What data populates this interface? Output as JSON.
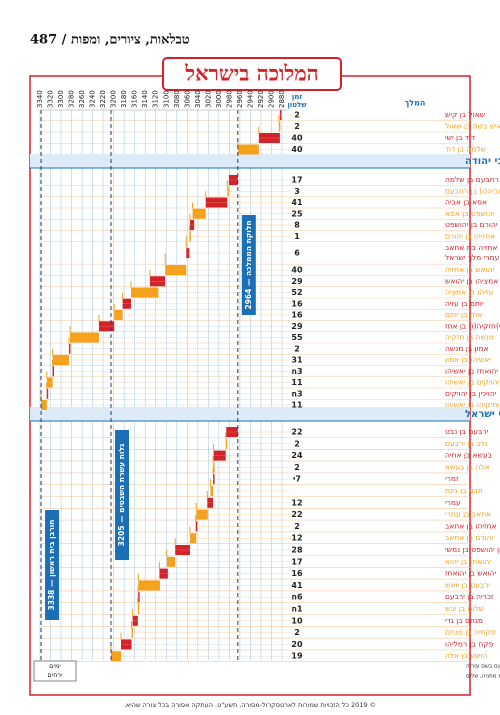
{
  "header": {
    "running_title": "טבלאות, ציורים, ומפות / 487"
  },
  "chart": {
    "title": "המלוכה בישראל",
    "reign_header": [
      "זמן",
      "שלטון"
    ],
    "king_header": "המלך",
    "xticks": [
      3340,
      3320,
      3300,
      3280,
      3260,
      3240,
      3220,
      3200,
      3180,
      3160,
      3140,
      3120,
      3100,
      3080,
      3060,
      3040,
      3020,
      3000,
      2980,
      2960,
      2940,
      2920,
      2900,
      2880
    ],
    "xlim": [
      3340,
      2880
    ],
    "united": [
      {
        "reign": "2",
        "name": "שאול בן קיש",
        "bar": [
          2882,
          2884
        ]
      },
      {
        "reign": "2",
        "name": "איש בשת בן שאול",
        "bar": [
          2884,
          2886
        ]
      },
      {
        "reign": "40",
        "name": "דוד בן ישי",
        "bar": [
          2884,
          2924
        ]
      },
      {
        "reign": "40",
        "name": "שלמה בן דוד",
        "bar": [
          2924,
          2964
        ]
      }
    ],
    "sections": [
      {
        "title": "מלכי יהודה",
        "rows": [
          {
            "reign": "17",
            "name": "רחבעם בן שלמה",
            "bar": [
              2964,
              2981
            ]
          },
          {
            "reign": "3",
            "name": "אביה(ו) בן רחבעם",
            "bar": [
              2981,
              2984
            ]
          },
          {
            "reign": "41",
            "name": "אסא בן אביה",
            "bar": [
              2984,
              3025
            ]
          },
          {
            "reign": "25",
            "name": "יהושפט בן אסא",
            "bar": [
              3025,
              3050
            ]
          },
          {
            "reign": "8",
            "name": "יהורם בן יהושפט",
            "bar": [
              3047,
              3055
            ]
          },
          {
            "reign": "1",
            "name": "אחזיהו בן יהורם",
            "bar": [
              3055,
              3056
            ]
          },
          {
            "reign": "6",
            "name": "עתליה(ו) אם אחזיה בת אחאב בן עמרי מלך ישראל",
            "bar": [
              3056,
              3062
            ]
          },
          {
            "reign": "40",
            "name": "יהואש בן אחזיה",
            "bar": [
              3062,
              3102
            ]
          },
          {
            "reign": "29",
            "name": "אמציהו בן יהואש",
            "bar": [
              3102,
              3131
            ]
          },
          {
            "reign": "52",
            "name": "עזיהו בן אמציה",
            "bar": [
              3115,
              3167
            ]
          },
          {
            "reign": "16",
            "name": "יותם בן עזיה",
            "bar": [
              3167,
              3183
            ]
          },
          {
            "reign": "16",
            "name": "אחז בן יותם",
            "bar": [
              3183,
              3199
            ]
          },
          {
            "reign": "29",
            "name": "(י)חזקיה(ו) בן אחז",
            "bar": [
              3199,
              3228
            ]
          },
          {
            "reign": "55",
            "name": "מנשה בן חזקיה",
            "bar": [
              3228,
              3283
            ]
          },
          {
            "reign": "2",
            "name": "אמון בן מנשה",
            "bar": [
              3283,
              3285
            ]
          },
          {
            "reign": "31",
            "name": "יאשיהו בן אמון",
            "bar": [
              3285,
              3316
            ]
          },
          {
            "reign": "3ח",
            "name": "יהואחז בן יאשיהו",
            "bar": [
              3316,
              3316.25
            ]
          },
          {
            "reign": "11",
            "name": "יהויקים בן יאשיהו",
            "bar": [
              3316,
              3327
            ]
          },
          {
            "reign": "3ח",
            "name": "יהויכין בן יהויקים",
            "bar": [
              3327,
              3327.25
            ]
          },
          {
            "reign": "11",
            "name": "צדקיהו בן יאשיהו",
            "bar": [
              3327,
              3338
            ]
          }
        ]
      },
      {
        "title": "מלכי ישראל",
        "rows": [
          {
            "reign": "22",
            "name": "ירבעם בן נבט",
            "bar": [
              2964,
              2986
            ]
          },
          {
            "reign": "2",
            "name": "נדב בן ירבעם",
            "bar": [
              2985,
              2987
            ]
          },
          {
            "reign": "24",
            "name": "בעשא בן אחיה",
            "bar": [
              2987,
              3010
            ]
          },
          {
            "reign": "2",
            "name": "אלה בן בעשא",
            "bar": [
              3010,
              3011
            ]
          },
          {
            "reign": "7י",
            "name": "זמרי",
            "bar": [
              3011,
              3011.05
            ]
          },
          {
            "reign": null,
            "name": "תבני בן גינת",
            "bar": [
              3011,
              3016
            ]
          },
          {
            "reign": "12",
            "name": "עמרי",
            "bar": [
              3011,
              3022
            ]
          },
          {
            "reign": "22",
            "name": "אחאב בן עמרי",
            "bar": [
              3021,
              3043
            ]
          },
          {
            "reign": "2",
            "name": "אחזיהו בן אחאב",
            "bar": [
              3042,
              3044
            ]
          },
          {
            "reign": "12",
            "name": "יהורם בן אחאב",
            "bar": [
              3043,
              3055
            ]
          },
          {
            "reign": "28",
            "name": "יהוא בן יהושפט בן נמשי",
            "bar": [
              3055,
              3083
            ]
          },
          {
            "reign": "17",
            "name": "יהואחז בן יהוא",
            "bar": [
              3083,
              3099
            ]
          },
          {
            "reign": "16",
            "name": "יהואש בן יהואחז",
            "bar": [
              3097,
              3113
            ]
          },
          {
            "reign": "41",
            "name": "ירבעם בן יואש",
            "bar": [
              3112,
              3153
            ]
          },
          {
            "reign": "6ח",
            "name": "זכריה בן ירבעם",
            "bar": [
              3153,
              3153.5
            ]
          },
          {
            "reign": "1ח",
            "name": "שלום בן יבש",
            "bar": [
              3154,
              3154.1
            ]
          },
          {
            "reign": "10",
            "name": "מנחם בן גדי",
            "bar": [
              3154,
              3164
            ]
          },
          {
            "reign": "2",
            "name": "פקחיה בן מנחם",
            "bar": [
              3164,
              3166
            ]
          },
          {
            "reign": "20",
            "name": "פקח בן רמליהו",
            "bar": [
              3166,
              3186
            ]
          },
          {
            "reign": "19",
            "name": "הושע בן אלה",
            "bar": [
              3186,
              3205
            ]
          }
        ]
      }
    ],
    "events": [
      {
        "year": 2964,
        "label": "חלוקת הממלכה — 2964"
      },
      {
        "year": 3205,
        "label": "גלות עשרת השבטים — 3205"
      },
      {
        "year": 3338,
        "label": "חורבן בית ראשון — 3338"
      }
    ],
    "legend": [
      "ימים",
      "ירחים"
    ],
    "footnotes": [
      "1 נודע גם בשם אשבעל   2 נודע גם בשם אבים   3 נודע גם בשמות יהואחז, עזריהו   4 נודע גם בשם עזריה",
      "5 נודע גם בשם יוחנן   6 נודע גם בשם אליקים   7 נודע גם בשמות יכניהו, כניהו   8 נודע גם בשמות מתניה, שלום"
    ]
  },
  "footer": {
    "copyright": "© 2019 כל הזכויות שמורות לארטסקרול-מסורה, תשע\"ט. העתקה אסורה בכל צורה שהיא."
  }
}
